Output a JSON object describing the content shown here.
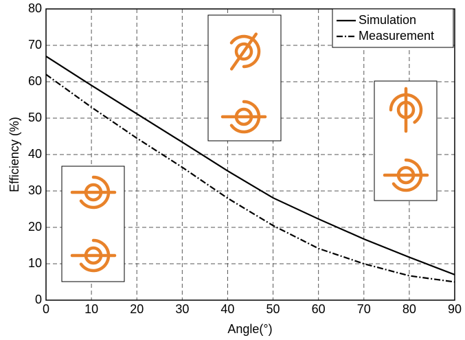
{
  "chart_data": {
    "type": "line",
    "xlabel": "Angle(°)",
    "ylabel": "Efficiency (%)",
    "x": [
      0,
      10,
      20,
      30,
      40,
      50,
      60,
      70,
      80,
      90
    ],
    "series": [
      {
        "name": "Simulation",
        "color": "#000000",
        "style": "solid",
        "values": [
          67,
          59,
          51.2,
          43.4,
          35.5,
          28.1,
          22.3,
          16.8,
          11.8,
          7
        ]
      },
      {
        "name": "Measurement",
        "color": "#000000",
        "style": "dashdot",
        "values": [
          62,
          53,
          44.5,
          36.5,
          28,
          20.5,
          14.2,
          10,
          6.7,
          5
        ]
      }
    ],
    "xlim": [
      0,
      90
    ],
    "xticks": [
      0,
      10,
      20,
      30,
      40,
      50,
      60,
      70,
      80,
      90
    ],
    "ylim": [
      0,
      80
    ],
    "yticks": [
      0,
      10,
      20,
      30,
      40,
      50,
      60,
      70,
      80
    ],
    "grid": true,
    "legend": "upper right"
  }
}
